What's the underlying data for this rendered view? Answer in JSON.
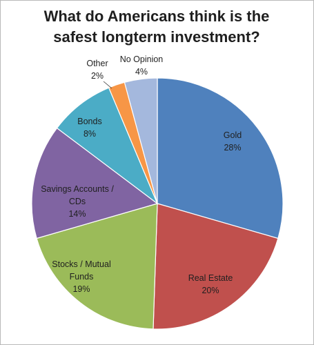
{
  "chart_data": {
    "type": "pie",
    "title_lines": [
      "What do Americans think is the",
      "safest longterm investment?"
    ],
    "slices": [
      {
        "name": "Gold",
        "label_lines": [
          "Gold"
        ],
        "percent_label": "28%",
        "value": 28,
        "color": "#4f81bd"
      },
      {
        "name": "Real Estate",
        "label_lines": [
          "Real Estate"
        ],
        "percent_label": "20%",
        "value": 20,
        "color": "#c0504d"
      },
      {
        "name": "Stocks / Mutual Funds",
        "label_lines": [
          "Stocks / Mutual",
          "Funds"
        ],
        "percent_label": "19%",
        "value": 19,
        "color": "#9bbb59"
      },
      {
        "name": "Savings Accounts / CDs",
        "label_lines": [
          "Savings Accounts /",
          "CDs"
        ],
        "percent_label": "14%",
        "value": 14,
        "color": "#8064a2"
      },
      {
        "name": "Bonds",
        "label_lines": [
          "Bonds"
        ],
        "percent_label": "8%",
        "value": 8,
        "color": "#4bacc6"
      },
      {
        "name": "Other",
        "label_lines": [
          "Other"
        ],
        "percent_label": "2%",
        "value": 2,
        "color": "#f79646"
      },
      {
        "name": "No Opinion",
        "label_lines": [
          "No Opinion"
        ],
        "percent_label": "4%",
        "value": 4,
        "color": "#a4b8dd"
      }
    ],
    "legend": "none",
    "grid": false
  }
}
